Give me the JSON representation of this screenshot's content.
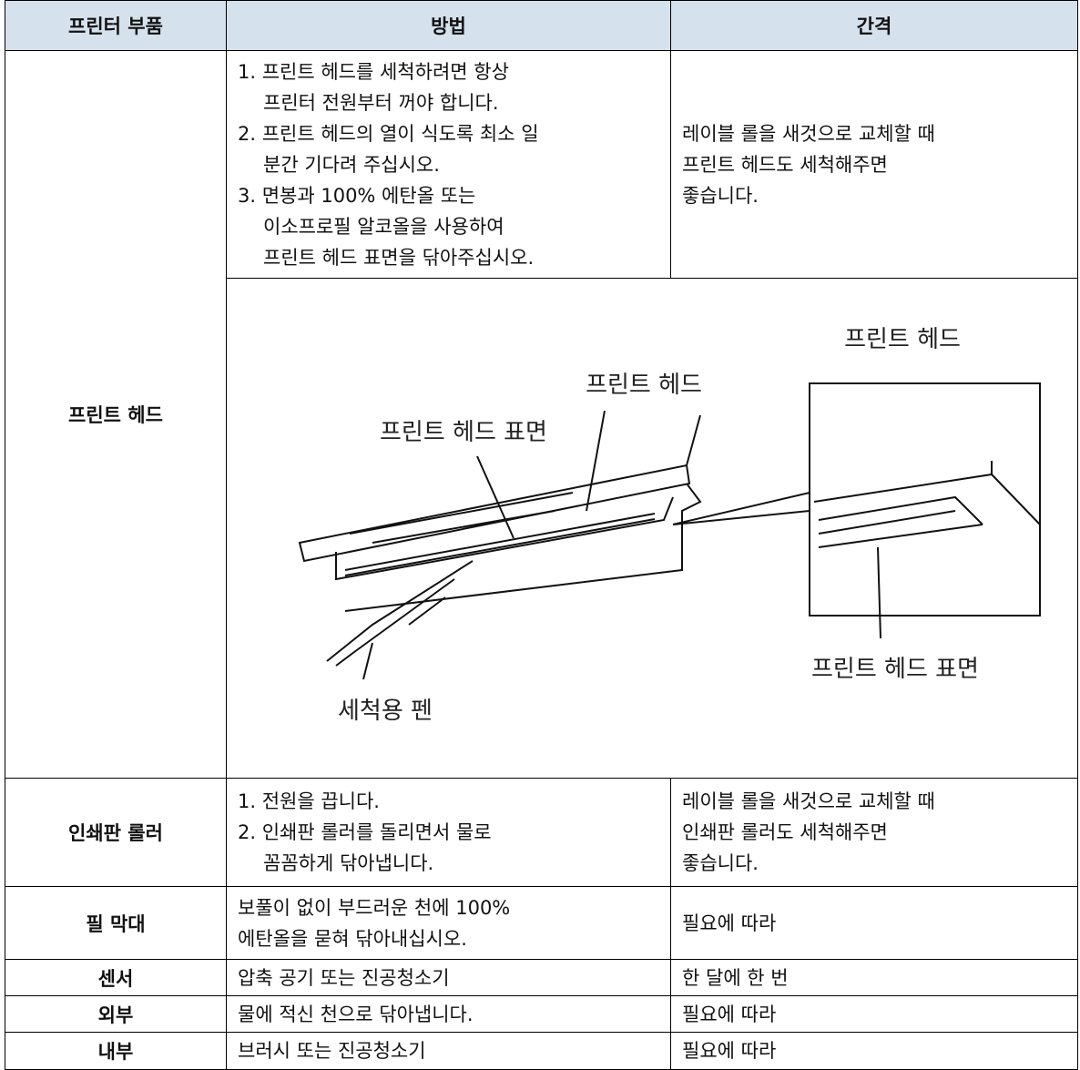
{
  "table": {
    "headers": [
      "프린터 부품",
      "방법",
      "간격"
    ],
    "rows": [
      {
        "part": "프린트 헤드",
        "method": [
          "1. 프린트 헤드를 세척하려면 항상",
          "프린터 전원부터 꺼야 합니다.",
          "2. 프린트 헤드의 열이 식도록 최소 일",
          "분간 기다려 주십시오.",
          "3. 면봉과 100% 에탄올 또는",
          "이소프로필 알코올을 사용하여",
          "프린트 헤드 표면을 닦아주십시오."
        ],
        "interval": [
          "레이블 롤을 새것으로 교체할 때",
          "프린트 헤드도 세척해주면",
          "좋습니다."
        ]
      },
      {
        "part": "인쇄판 롤러",
        "method": [
          "1. 전원을 끕니다.",
          "2. 인쇄판 롤러를 돌리면서 물로",
          "꼼꼼하게 닦아냅니다."
        ],
        "interval": [
          "레이블 롤을 새것으로 교체할 때",
          "인쇄판 롤러도 세척해주면",
          "좋습니다."
        ]
      },
      {
        "part": "필 막대",
        "method": [
          "보풀이 없이 부드러운 천에 100%",
          "에탄올을 묻혀 닦아내십시오."
        ],
        "interval": [
          "필요에 따라"
        ]
      },
      {
        "part": "센서",
        "method": [
          "압축 공기 또는 진공청소기"
        ],
        "interval": [
          "한 달에 한 번"
        ]
      },
      {
        "part": "외부",
        "method": [
          "물에 적신 천으로 닦아냅니다."
        ],
        "interval": [
          "필요에 따라"
        ]
      },
      {
        "part": "내부",
        "method": [
          "브러시 또는 진공청소기"
        ],
        "interval": [
          "필요에 따라"
        ]
      }
    ]
  },
  "figure": {
    "labels": [
      "프린트 헤드",
      "프린트 헤드",
      "프린트 헤드 표면",
      "프린트 헤드 표면",
      "세척용 펜"
    ]
  }
}
